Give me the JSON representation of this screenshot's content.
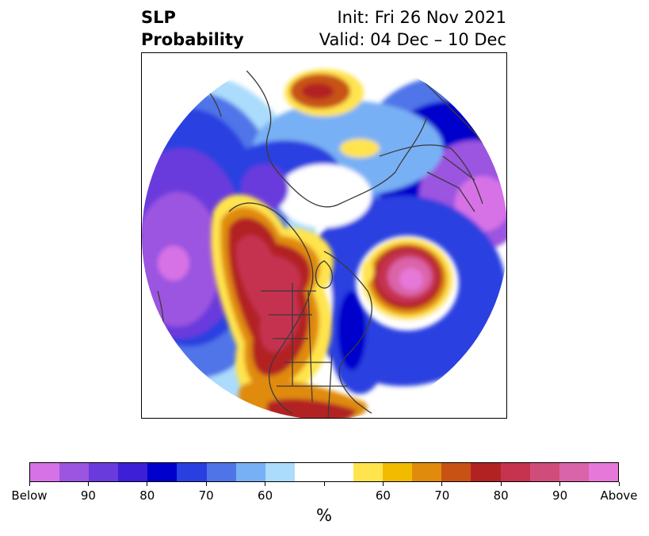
{
  "title": {
    "left_line1": "SLP",
    "left_line2": "Probability",
    "right_line1": "Init: Fri 26 Nov 2021",
    "right_line2": "Valid: 04 Dec – 10 Dec"
  },
  "colorbar": {
    "unit": "%",
    "colors": [
      "#d772e6",
      "#9b55e0",
      "#6a3bdc",
      "#3c1fd6",
      "#0000cc",
      "#2a3fe0",
      "#4f74e8",
      "#78b0f5",
      "#acdcfb",
      "#ffffff",
      "#ffffff",
      "#ffe44d",
      "#f3bb00",
      "#e08b0b",
      "#c85214",
      "#b22222",
      "#c5334f",
      "#d04d7b",
      "#da64a9",
      "#e678d9"
    ],
    "labels": [
      "Below",
      "90",
      "80",
      "70",
      "60",
      "",
      "60",
      "70",
      "80",
      "90",
      "Above"
    ]
  },
  "map": {
    "projection": "polar stereographic",
    "anomaly_centers": [
      {
        "region": "North Pacific / West Canada",
        "sign": "above",
        "max": "Above"
      },
      {
        "region": "North Atlantic",
        "sign": "above",
        "max": "Above"
      },
      {
        "region": "Eastern Siberia / Pacific",
        "sign": "below",
        "max": "Below"
      },
      {
        "region": "Europe",
        "sign": "below",
        "max": "Below"
      },
      {
        "region": "Eastern North America",
        "sign": "below",
        "max": "80"
      }
    ]
  }
}
